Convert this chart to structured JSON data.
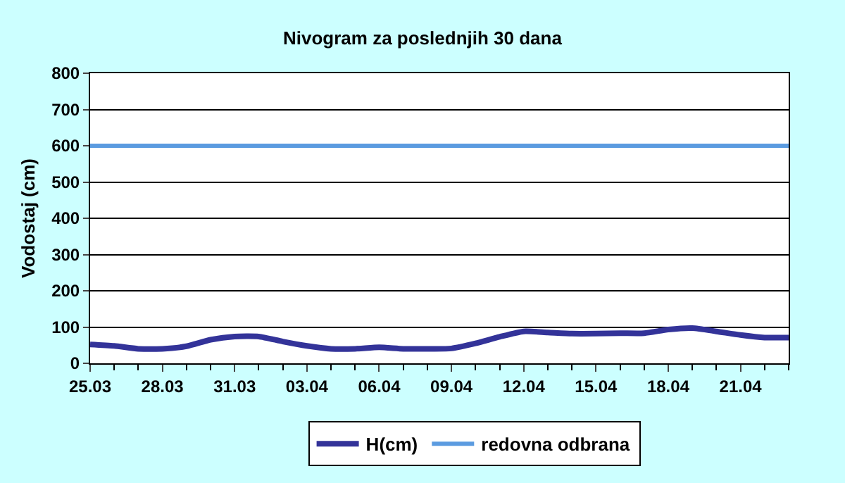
{
  "chart_data": {
    "type": "line",
    "title": "Nivogram za poslednjih 30 dana",
    "ylabel": "Vodostaj (cm)",
    "categories": [
      "25.03",
      null,
      null,
      "28.03",
      null,
      null,
      "31.03",
      null,
      null,
      "03.04",
      null,
      null,
      "06.04",
      null,
      null,
      "09.04",
      null,
      null,
      "12.04",
      null,
      null,
      "15.04",
      null,
      null,
      "18.04",
      null,
      null,
      "21.04",
      null,
      null
    ],
    "series": [
      {
        "name": "H(cm)",
        "color": "#333399",
        "values": [
          52,
          48,
          40,
          40,
          47,
          65,
          74,
          74,
          60,
          48,
          40,
          40,
          44,
          40,
          40,
          41,
          55,
          73,
          88,
          85,
          82,
          82,
          83,
          83,
          93,
          97,
          88,
          78,
          71,
          71
        ]
      }
    ],
    "ref_lines": [
      {
        "axis": "y",
        "value": 600,
        "label": "redovna odbrana",
        "color": "#5b9be0"
      }
    ],
    "ylim": [
      0,
      800
    ],
    "yticks": [
      0,
      100,
      200,
      300,
      400,
      500,
      600,
      700,
      800
    ],
    "grid": "y",
    "legend": "bottom",
    "marker": "none",
    "line_style": "solid"
  }
}
